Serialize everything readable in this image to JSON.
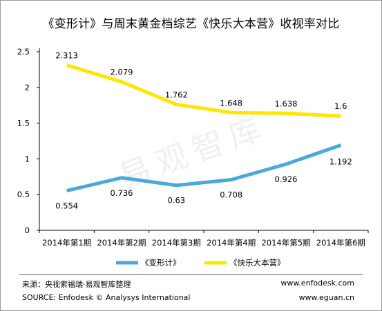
{
  "title": "《变形计》与周末黄金档综艺《快乐大本营》收视率对比",
  "watermark": "易观智库",
  "chart_data": {
    "type": "line",
    "categories": [
      "2014年第1期",
      "2014年第2期",
      "2014年第3期",
      "2014年第4期",
      "2014年第5期",
      "2014年第6期"
    ],
    "y_ticks": [
      "0",
      "0.5",
      "1",
      "1.5",
      "2",
      "2.5"
    ],
    "ylim": [
      0,
      2.5
    ],
    "grid": false,
    "legend_position": "bottom",
    "series": [
      {
        "name": "《变形计》",
        "color": "#4aa8dc",
        "values": [
          0.554,
          0.736,
          0.63,
          0.708,
          0.926,
          1.192
        ],
        "labels": [
          "0.554",
          "0.736",
          "0.63",
          "0.708",
          "0.926",
          "1.192"
        ]
      },
      {
        "name": "《快乐大本营》",
        "color": "#ffe600",
        "values": [
          2.313,
          2.079,
          1.762,
          1.648,
          1.638,
          1.6
        ],
        "labels": [
          "2.313",
          "2.079",
          "1.762",
          "1.648",
          "1.638",
          "1.6"
        ]
      }
    ]
  },
  "footer": {
    "source_cn": "来源：央视索福瑞·易观智库整理",
    "source_en": "SOURCE: Enfodesk © Analysys International",
    "url1": "www.enfodesk.com",
    "url2": "www.eguan.cn"
  }
}
